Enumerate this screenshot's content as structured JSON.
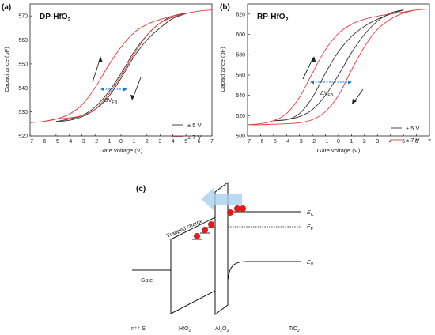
{
  "panel_labels": {
    "a": "(a)",
    "b": "(b)",
    "c": "(c)"
  },
  "chart_data": [
    {
      "type": "line",
      "title": "DP-HfO2",
      "title_main": "DP-HfO",
      "title_sub": "2",
      "xlabel": "Gate voltage (V)",
      "ylabel": "Capacitance (pF)",
      "xlim": [
        -7,
        7
      ],
      "ylim": [
        520,
        575
      ],
      "xticks": [
        "-7",
        "-6",
        "-5",
        "-4",
        "-3",
        "-2",
        "-1",
        "0",
        "1",
        "2",
        "3",
        "4",
        "5",
        "6",
        "7"
      ],
      "yticks": [
        "520",
        "530",
        "540",
        "550",
        "560",
        "570"
      ],
      "annotation_main": "ΔV",
      "annotation_sub": "FB",
      "legend_position": "bottom-right",
      "series": [
        {
          "name": "± 5 V",
          "color": "#333333",
          "x": [
            -5,
            -4,
            -3,
            -2,
            -1,
            0,
            1,
            2,
            3,
            4,
            5,
            4,
            3,
            2,
            1,
            0,
            -1,
            -2,
            -3,
            -4,
            -5
          ],
          "y": [
            526,
            526.5,
            528,
            531,
            536,
            544,
            553,
            560,
            565,
            569,
            571,
            570,
            567,
            562,
            555,
            546,
            538,
            532,
            528.5,
            527,
            526
          ]
        },
        {
          "name": "± 7 V",
          "color": "#e8393a",
          "x": [
            -7,
            -6,
            -5,
            -4,
            -3,
            -2,
            -1,
            0,
            1,
            2,
            3,
            4,
            5,
            6,
            7,
            6,
            5,
            4,
            3,
            2,
            1,
            0,
            -1,
            -2,
            -3,
            -4,
            -5,
            -6,
            -7
          ],
          "y": [
            525.5,
            526,
            527,
            529,
            533,
            540,
            549,
            557,
            563,
            566.5,
            568.5,
            570,
            571,
            572,
            572.5,
            572,
            571,
            569.5,
            567,
            562,
            554,
            545,
            537,
            531,
            528.5,
            527.5,
            527,
            526,
            525.5
          ]
        }
      ]
    },
    {
      "type": "line",
      "title": "RP-HfO2",
      "title_main": "RP-HfO",
      "title_sub": "2",
      "xlabel": "Gate voltage (V)",
      "ylabel": "Capacitance (pF)",
      "xlim": [
        -7,
        7
      ],
      "ylim": [
        500,
        630
      ],
      "xticks": [
        "-7",
        "-6",
        "-5",
        "-4",
        "-3",
        "-2",
        "-1",
        "0",
        "1",
        "2",
        "3",
        "4",
        "5",
        "6",
        "7"
      ],
      "yticks": [
        "500",
        "520",
        "540",
        "560",
        "580",
        "600",
        "620"
      ],
      "annotation_main": "ΔV",
      "annotation_sub": "FB",
      "legend_position": "bottom-right",
      "series": [
        {
          "name": "± 5 V",
          "color": "#333333",
          "x": [
            -5,
            -4,
            -3,
            -2,
            -1,
            0,
            1,
            2,
            3,
            4,
            5,
            4,
            3,
            2,
            1,
            0,
            -1,
            -2,
            -3,
            -4,
            -5
          ],
          "y": [
            515,
            516,
            522,
            538,
            562,
            583,
            598,
            608,
            615,
            620,
            624,
            621,
            613,
            600,
            582,
            560,
            540,
            526,
            519,
            516,
            515
          ]
        },
        {
          "name": "± 7 V",
          "color": "#e8393a",
          "x": [
            -7,
            -6,
            -5,
            -4,
            -3,
            -2,
            -1,
            0,
            1,
            2,
            3,
            4,
            5,
            6,
            7,
            6,
            5,
            4,
            3,
            2,
            1,
            0,
            -1,
            -2,
            -3,
            -4,
            -5,
            -6,
            -7
          ],
          "y": [
            511,
            512,
            515,
            522,
            538,
            562,
            585,
            601,
            610,
            615,
            618,
            620,
            622,
            624,
            625,
            624,
            621,
            615,
            605,
            588,
            565,
            540,
            524,
            516,
            513,
            512,
            511.5,
            511,
            511
          ]
        }
      ]
    }
  ],
  "diagram": {
    "ec_main": "E",
    "ec_sub": "C",
    "ef_main": "E",
    "ef_sub": "F",
    "ev_main": "E",
    "ev_sub": "V",
    "gate": "Gate",
    "trapped": "Trapped charge",
    "layers": {
      "si": "n⁺⁺ Si",
      "hfo_main": "HfO",
      "hfo_sub": "2",
      "al_main": "Al",
      "al_sub1": "2",
      "al_o": "O",
      "al_sub2": "3",
      "tio_main": "TiO",
      "tio_sub": "2"
    },
    "colors": {
      "arrow": "#a9d1ef",
      "electron": "#e21b1b"
    }
  }
}
